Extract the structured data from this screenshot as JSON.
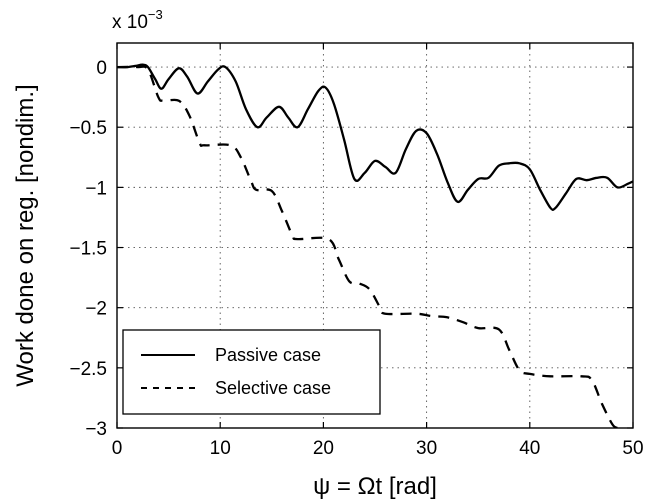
{
  "chart_data": {
    "type": "line",
    "title": "",
    "xlabel": "ψ = Ωt [rad]",
    "ylabel": "Work done on reg. [nondim.]",
    "y_exponent_label": "x 10",
    "y_exponent_power": "−3",
    "xlim": [
      0,
      50
    ],
    "ylim": [
      -3,
      0.2
    ],
    "grid": true,
    "legend_position": "bottom-left",
    "x_ticks": [
      {
        "value": 0,
        "label": "0"
      },
      {
        "value": 10,
        "label": "10"
      },
      {
        "value": 20,
        "label": "20"
      },
      {
        "value": 30,
        "label": "30"
      },
      {
        "value": 40,
        "label": "40"
      },
      {
        "value": 50,
        "label": "50"
      }
    ],
    "y_ticks": [
      {
        "value": 0,
        "label": "0"
      },
      {
        "value": -0.5,
        "label": "−0.5"
      },
      {
        "value": -1,
        "label": "−1"
      },
      {
        "value": -1.5,
        "label": "−1.5"
      },
      {
        "value": -2,
        "label": "−2"
      },
      {
        "value": -2.5,
        "label": "−2.5"
      },
      {
        "value": -3,
        "label": "−3"
      }
    ],
    "series": [
      {
        "name": "Passive case",
        "style": "solid",
        "color": "#000000",
        "points": [
          [
            0,
            0
          ],
          [
            1,
            0
          ],
          [
            1.8,
            0.01
          ],
          [
            2.5,
            0.02
          ],
          [
            3,
            0
          ],
          [
            3.7,
            -0.1
          ],
          [
            4.3,
            -0.18
          ],
          [
            5,
            -0.1
          ],
          [
            6,
            -0.01
          ],
          [
            6.8,
            -0.08
          ],
          [
            7.8,
            -0.22
          ],
          [
            8.8,
            -0.12
          ],
          [
            9.8,
            -0.02
          ],
          [
            10.5,
            0
          ],
          [
            11.5,
            -0.12
          ],
          [
            12.5,
            -0.35
          ],
          [
            13.6,
            -0.5
          ],
          [
            14.5,
            -0.42
          ],
          [
            15.7,
            -0.33
          ],
          [
            16.6,
            -0.42
          ],
          [
            17.5,
            -0.5
          ],
          [
            18.5,
            -0.35
          ],
          [
            19.5,
            -0.2
          ],
          [
            20.2,
            -0.17
          ],
          [
            21,
            -0.3
          ],
          [
            22,
            -0.6
          ],
          [
            23,
            -0.93
          ],
          [
            24,
            -0.88
          ],
          [
            25,
            -0.78
          ],
          [
            26,
            -0.83
          ],
          [
            27,
            -0.88
          ],
          [
            28,
            -0.68
          ],
          [
            29,
            -0.53
          ],
          [
            30,
            -0.55
          ],
          [
            31,
            -0.72
          ],
          [
            32,
            -0.95
          ],
          [
            33,
            -1.12
          ],
          [
            34,
            -1.02
          ],
          [
            35,
            -0.93
          ],
          [
            36,
            -0.92
          ],
          [
            37,
            -0.82
          ],
          [
            38,
            -0.8
          ],
          [
            39,
            -0.8
          ],
          [
            40,
            -0.85
          ],
          [
            41,
            -1.02
          ],
          [
            42,
            -1.17
          ],
          [
            42.5,
            -1.17
          ],
          [
            43.5,
            -1.05
          ],
          [
            44.5,
            -0.93
          ],
          [
            45.5,
            -0.94
          ],
          [
            46.5,
            -0.92
          ],
          [
            47.5,
            -0.92
          ],
          [
            48.5,
            -1.0
          ],
          [
            49.5,
            -0.97
          ],
          [
            50,
            -0.95
          ]
        ]
      },
      {
        "name": "Selective case",
        "style": "dashed",
        "color": "#000000",
        "points": [
          [
            0,
            0
          ],
          [
            2,
            0
          ],
          [
            3,
            -0.02
          ],
          [
            4,
            -0.25
          ],
          [
            4.5,
            -0.28
          ],
          [
            6,
            -0.28
          ],
          [
            7,
            -0.4
          ],
          [
            8,
            -0.63
          ],
          [
            8.5,
            -0.65
          ],
          [
            11,
            -0.65
          ],
          [
            12,
            -0.75
          ],
          [
            13,
            -0.95
          ],
          [
            13.5,
            -1.02
          ],
          [
            15,
            -1.03
          ],
          [
            16,
            -1.2
          ],
          [
            17,
            -1.4
          ],
          [
            17.5,
            -1.43
          ],
          [
            20.5,
            -1.43
          ],
          [
            21.5,
            -1.6
          ],
          [
            22.5,
            -1.78
          ],
          [
            23.5,
            -1.8
          ],
          [
            24.5,
            -1.85
          ],
          [
            25.5,
            -2.0
          ],
          [
            26,
            -2.05
          ],
          [
            29,
            -2.05
          ],
          [
            30.5,
            -2.07
          ],
          [
            32,
            -2.08
          ],
          [
            33.5,
            -2.12
          ],
          [
            35,
            -2.17
          ],
          [
            37,
            -2.18
          ],
          [
            38,
            -2.35
          ],
          [
            39,
            -2.52
          ],
          [
            40,
            -2.55
          ],
          [
            42,
            -2.57
          ],
          [
            45,
            -2.57
          ],
          [
            46,
            -2.6
          ],
          [
            47,
            -2.8
          ],
          [
            48,
            -2.97
          ],
          [
            48.5,
            -3.0
          ]
        ]
      }
    ]
  }
}
